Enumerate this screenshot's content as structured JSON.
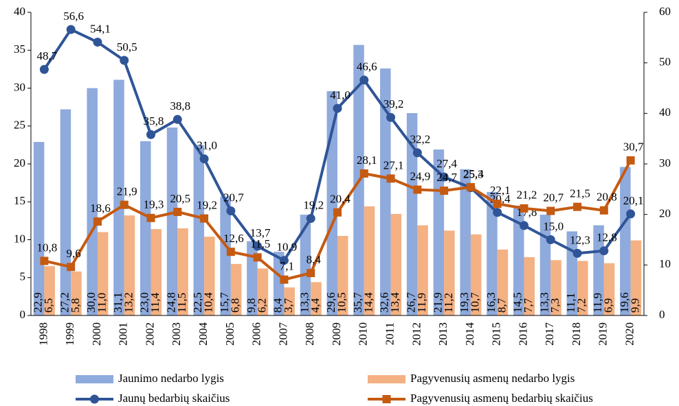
{
  "chart_data": {
    "type": "bar-line",
    "categories": [
      "1998",
      "1999",
      "2000",
      "2001",
      "2002",
      "2003",
      "2004",
      "2005",
      "2006",
      "2007",
      "2008",
      "2009",
      "2010",
      "2011",
      "2012",
      "2013",
      "2014",
      "2015",
      "2016",
      "2017",
      "2018",
      "2019",
      "2020"
    ],
    "ylim": [
      0,
      40
    ],
    "yticks": [
      0,
      5,
      10,
      15,
      20,
      25,
      30,
      35,
      40
    ],
    "y2lim": [
      0,
      60
    ],
    "y2ticks": [
      0,
      10,
      20,
      30,
      40,
      50,
      60
    ],
    "grid": false,
    "series": [
      {
        "name": "Jaunimo nedarbo lygis",
        "kind": "bar",
        "color": "#8faadc",
        "values": [
          22.9,
          27.2,
          30.0,
          31.1,
          23.0,
          24.8,
          22.5,
          15.7,
          9.8,
          8.4,
          13.3,
          29.6,
          35.7,
          32.6,
          26.7,
          21.9,
          19.3,
          16.3,
          14.5,
          13.3,
          11.1,
          11.9,
          19.6
        ],
        "value_labels": [
          "22,9",
          "27,2",
          "30,0",
          "31,1",
          "23,0",
          "24,8",
          "22,5",
          "15,7",
          "9,8",
          "8,4",
          "13,3",
          "29,6",
          "35,7",
          "32,6",
          "26,7",
          "21,9",
          "19,3",
          "16,3",
          "14,5",
          "13,3",
          "11,1",
          "11,9",
          "19,6"
        ]
      },
      {
        "name": "Pagyvenusių asmenų nedarbo lygis",
        "kind": "bar",
        "color": "#f4b183",
        "values": [
          6.5,
          5.8,
          11.0,
          13.2,
          11.4,
          11.5,
          10.4,
          6.8,
          6.2,
          3.7,
          4.4,
          10.5,
          14.4,
          13.4,
          11.9,
          11.2,
          10.7,
          8.7,
          7.7,
          7.3,
          7.2,
          6.9,
          9.9
        ],
        "value_labels": [
          "6,5",
          "5,8",
          "11,0",
          "13,2",
          "11,4",
          "11,5",
          "10,4",
          "6,8",
          "6,2",
          "3,7",
          "4,4",
          "10,5",
          "14,4",
          "13,4",
          "11,9",
          "11,2",
          "10,7",
          "8,7",
          "7,7",
          "7,3",
          "7,2",
          "6,9",
          "9,9"
        ]
      },
      {
        "name": "Jaunų bedarbių skaičius",
        "kind": "line",
        "axis": "y2",
        "color": "#2f5597",
        "marker": "circle",
        "values": [
          48.7,
          56.6,
          54.1,
          50.5,
          35.8,
          38.8,
          31.0,
          20.7,
          13.7,
          10.9,
          19.2,
          41.0,
          46.6,
          39.2,
          32.2,
          27.4,
          25.3,
          20.4,
          17.8,
          15.0,
          12.3,
          12.8,
          20.1
        ],
        "value_labels": [
          "48,7",
          "56,6",
          "54,1",
          "50,5",
          "35,8",
          "38,8",
          "31,0",
          "20,7",
          "13,7",
          "10,9",
          "19,2",
          "41,0",
          "46,6",
          "39,2",
          "32,2",
          "27,4",
          "25,3",
          "20,4",
          "17,8",
          "15,0",
          "12,3",
          "12,8",
          "20,1"
        ]
      },
      {
        "name": "Pagyvenusių asmenų bedarbių skaičius",
        "kind": "line",
        "axis": "y2",
        "color": "#c55a11",
        "marker": "square",
        "values": [
          10.8,
          9.6,
          18.6,
          21.9,
          19.3,
          20.5,
          19.2,
          12.6,
          11.5,
          7.1,
          8.4,
          20.4,
          28.1,
          27.1,
          24.9,
          24.7,
          25.4,
          22.1,
          21.2,
          20.7,
          21.5,
          20.8,
          30.7
        ],
        "value_labels": [
          "10,8",
          "9,6",
          "18,6",
          "21,9",
          "19,3",
          "20,5",
          "19,2",
          "12,6",
          "11,5",
          "7,1",
          "8,4",
          "20,4",
          "28,1",
          "27,1",
          "24,9",
          "24,7",
          "25,4",
          "22,1",
          "21,2",
          "20,7",
          "21,5",
          "20,8",
          "30,7"
        ]
      }
    ]
  }
}
